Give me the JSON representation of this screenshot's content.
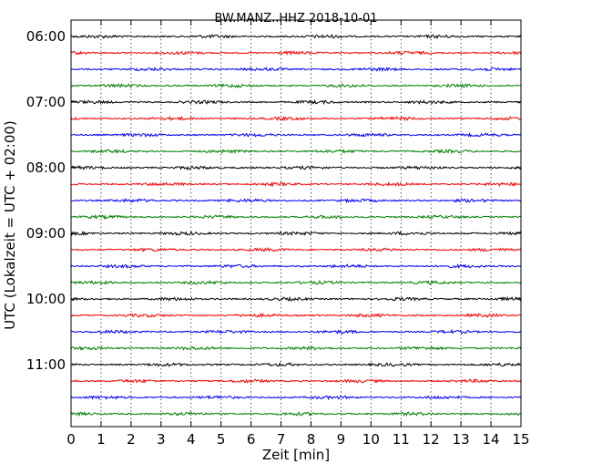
{
  "chart_data": {
    "type": "line",
    "title": "BW.MANZ..HHZ 2018-10-01",
    "xlabel": "Zeit  [min]",
    "ylabel": "UTC (Lokalzeit = UTC + 02:00)",
    "xlim": [
      0,
      15
    ],
    "x_ticks": [
      "0",
      "1",
      "2",
      "3",
      "4",
      "5",
      "6",
      "7",
      "8",
      "9",
      "10",
      "11",
      "12",
      "13",
      "14",
      "15"
    ],
    "y_tick_labels": [
      "06:00",
      "07:00",
      "08:00",
      "09:00",
      "10:00",
      "11:00"
    ],
    "trace_start_times": [
      "06:00",
      "06:15",
      "06:30",
      "06:45",
      "07:00",
      "07:15",
      "07:30",
      "07:45",
      "08:00",
      "08:15",
      "08:30",
      "08:45",
      "09:00",
      "09:15",
      "09:30",
      "09:45",
      "10:00",
      "10:15",
      "10:30",
      "10:45",
      "11:00",
      "11:15",
      "11:30",
      "11:45"
    ],
    "trace_duration_min": 15,
    "trace_colors": [
      "#000000",
      "#ff0000",
      "#0000ff",
      "#008000"
    ],
    "grid": {
      "x": true,
      "y": false,
      "style": "dotted"
    }
  }
}
